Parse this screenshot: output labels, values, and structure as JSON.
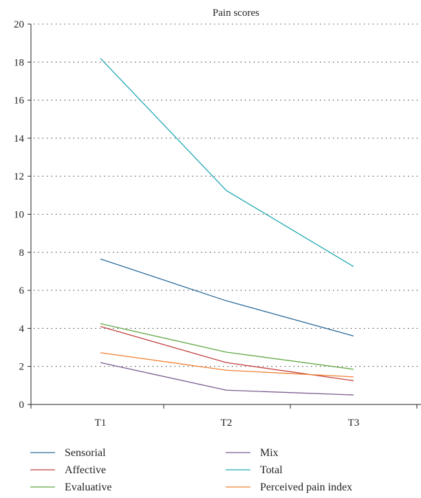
{
  "chart_data": {
    "type": "line",
    "title": "Pain scores",
    "xlabel": "",
    "ylabel": "",
    "categories": [
      "T1",
      "T2",
      "T3"
    ],
    "ylim": [
      0,
      20
    ],
    "yticks": [
      0,
      2,
      4,
      6,
      8,
      10,
      12,
      14,
      16,
      18,
      20
    ],
    "grid": "horizontal dotted",
    "legend_position": "bottom",
    "series": [
      {
        "name": "Sensorial",
        "color": "#2b6a9b",
        "values": [
          7.65,
          5.45,
          3.6
        ]
      },
      {
        "name": "Affective",
        "color": "#c1403d",
        "values": [
          4.1,
          2.2,
          1.25
        ]
      },
      {
        "name": "Evaluative",
        "color": "#62a744",
        "values": [
          4.25,
          2.75,
          1.85
        ]
      },
      {
        "name": "Mix",
        "color": "#7b5a8e",
        "values": [
          2.2,
          0.75,
          0.5
        ]
      },
      {
        "name": "Total",
        "color": "#1fa7b3",
        "values": [
          18.2,
          11.25,
          7.25
        ]
      },
      {
        "name": "Perceived pain index",
        "color": "#ef8133",
        "values": [
          2.72,
          1.8,
          1.45
        ]
      }
    ]
  }
}
